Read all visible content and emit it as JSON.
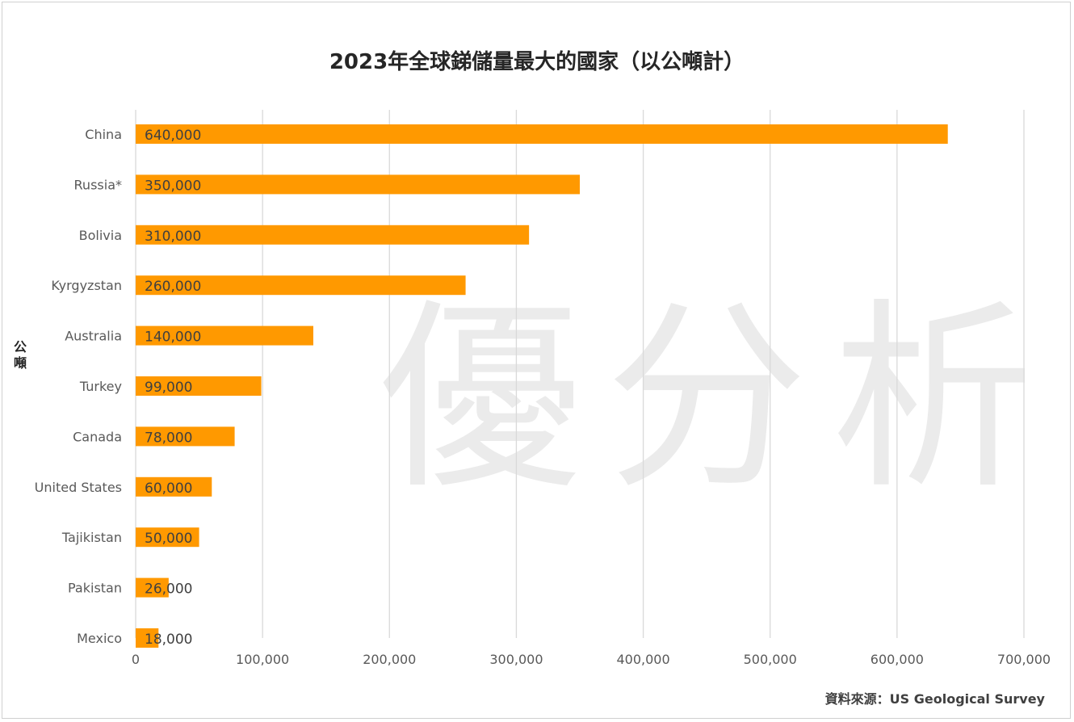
{
  "chart_data": {
    "type": "bar",
    "orientation": "horizontal",
    "title": "2023年全球銻儲量最大的國家（以公噸計）",
    "ylabel": "公噸",
    "xlabel": "",
    "source": "資料來源：US Geological Survey",
    "watermark": "優分析",
    "categories": [
      "China",
      "Russia*",
      "Bolivia",
      "Kyrgyzstan",
      "Australia",
      "Turkey",
      "Canada",
      "United States",
      "Tajikistan",
      "Pakistan",
      "Mexico"
    ],
    "values": [
      640000,
      350000,
      310000,
      260000,
      140000,
      99000,
      78000,
      60000,
      50000,
      26000,
      18000
    ],
    "value_labels": [
      "640,000",
      "350,000",
      "310,000",
      "260,000",
      "140,000",
      "99,000",
      "78,000",
      "60,000",
      "50,000",
      "26,000",
      "18,000"
    ],
    "x_ticks": [
      "0",
      "100,000",
      "200,000",
      "300,000",
      "400,000",
      "500,000",
      "600,000",
      "700,000"
    ],
    "xlim": [
      0,
      700000
    ],
    "grid": true,
    "bar_color": "#FF9900"
  }
}
